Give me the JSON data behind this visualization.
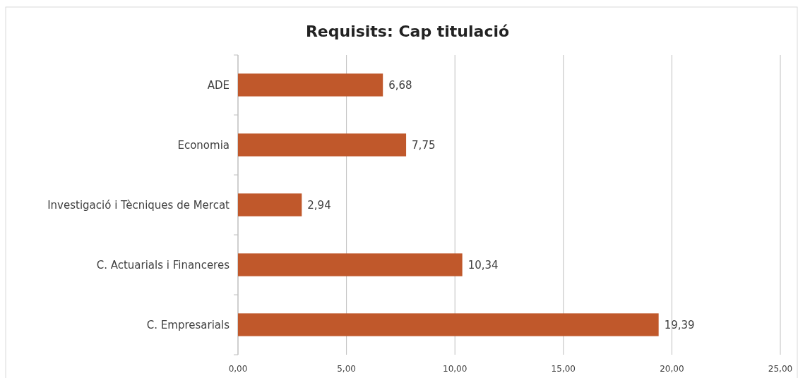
{
  "chart_data": {
    "type": "bar",
    "orientation": "horizontal",
    "title": "Requisits: Cap titulació",
    "categories": [
      "ADE",
      "Economia",
      "Investigació i Tècniques de Mercat",
      "C. Actuarials i Financeres",
      "C. Empresarials"
    ],
    "values": [
      6.68,
      7.75,
      2.94,
      10.34,
      19.39
    ],
    "value_labels": [
      "6,68",
      "7,75",
      "2,94",
      "10,34",
      "19,39"
    ],
    "color": "#c0582b",
    "xlim": [
      0,
      25
    ],
    "xticks": [
      {
        "value": 0,
        "label": "0,00"
      },
      {
        "value": 5,
        "label": "5,00"
      },
      {
        "value": 10,
        "label": "10,00"
      },
      {
        "value": 15,
        "label": "15,00"
      },
      {
        "value": 20,
        "label": "20,00"
      },
      {
        "value": 25,
        "label": "25,00"
      }
    ],
    "grid": "x"
  }
}
